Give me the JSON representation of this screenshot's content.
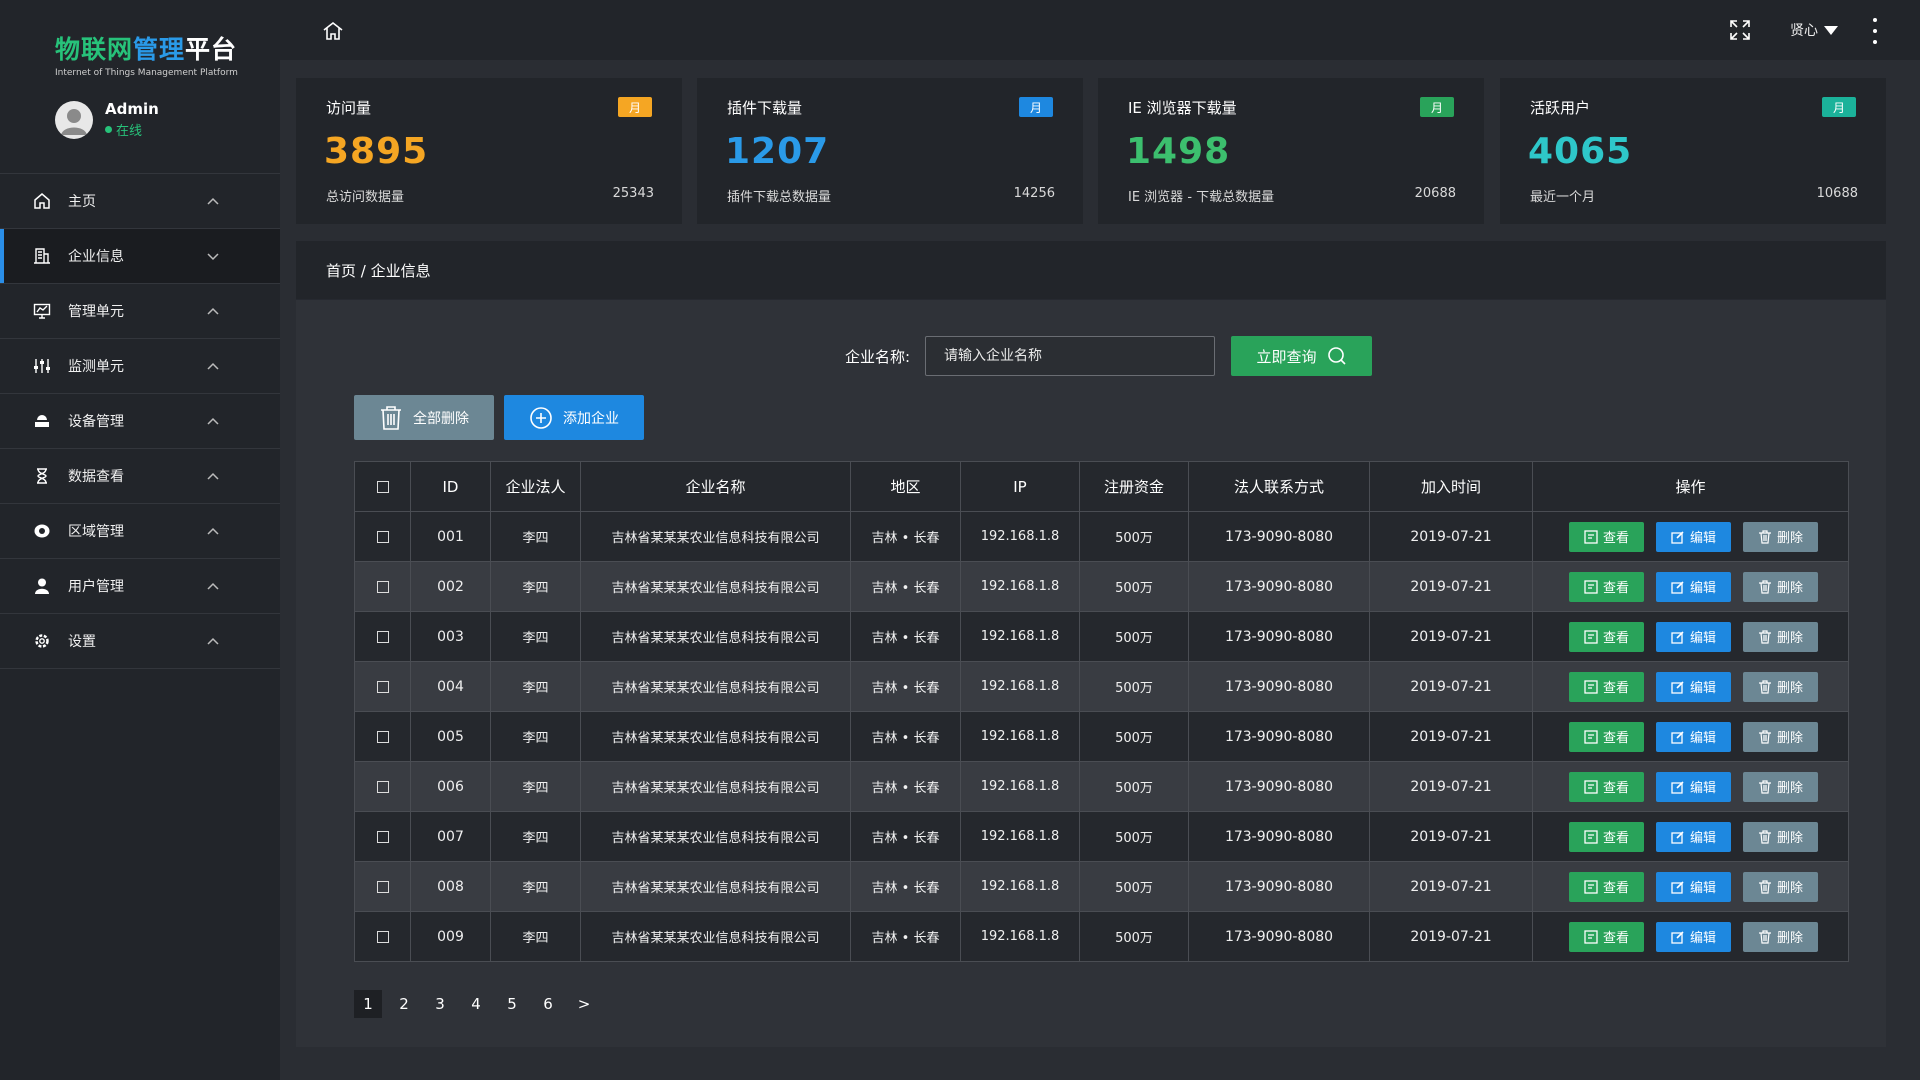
{
  "brand": {
    "title_part1": "物联网",
    "title_part2": "管理",
    "title_part3": "平台",
    "subtitle": "Internet of Things Management Platform"
  },
  "user": {
    "name": "Admin",
    "status": "在线"
  },
  "sidebar": {
    "items": [
      {
        "label": "主页",
        "icon": "home-icon"
      },
      {
        "label": "企业信息",
        "icon": "building-icon"
      },
      {
        "label": "管理单元",
        "icon": "monitor-chart-icon"
      },
      {
        "label": "监测单元",
        "icon": "sliders-icon"
      },
      {
        "label": "设备管理",
        "icon": "device-icon"
      },
      {
        "label": "数据查看",
        "icon": "hourglass-icon"
      },
      {
        "label": "区域管理",
        "icon": "location-icon"
      },
      {
        "label": "用户管理",
        "icon": "user-icon"
      },
      {
        "label": "设置",
        "icon": "gear-icon"
      }
    ]
  },
  "topbar": {
    "username": "贤心"
  },
  "stats": [
    {
      "title": "访问量",
      "badge": "月",
      "value": "3895",
      "foot": "总访问数据量",
      "total": "25343",
      "color": "#f5a623",
      "badge_color": "#f5a623"
    },
    {
      "title": "插件下载量",
      "badge": "月",
      "value": "1207",
      "foot": "插件下载总数据量",
      "total": "14256",
      "color": "#2a9ae8",
      "badge_color": "#1e88e0"
    },
    {
      "title": "IE 浏览器下载量",
      "badge": "月",
      "value": "1498",
      "foot": "IE 浏览器 - 下载总数据量",
      "total": "20688",
      "color": "#3cbf6e",
      "badge_color": "#29a35a"
    },
    {
      "title": "活跃用户",
      "badge": "月",
      "value": "4065",
      "foot": "最近一个月",
      "total": "10688",
      "color": "#2ec7c9",
      "badge_color": "#1bb29a"
    }
  ],
  "breadcrumb": "首页 / 企业信息",
  "search": {
    "label": "企业名称:",
    "placeholder": "请输入企业名称",
    "button": "立即查询"
  },
  "actions": {
    "delete_all": "全部删除",
    "add": "添加企业"
  },
  "table": {
    "headers": [
      "ID",
      "企业法人",
      "企业名称",
      "地区",
      "IP",
      "注册资金",
      "法人联系方式",
      "加入时间",
      "操作"
    ],
    "op_labels": {
      "view": "查看",
      "edit": "编辑",
      "delete": "删除"
    },
    "rows": [
      {
        "id": "001",
        "legal": "李四",
        "name": "吉林省某某某农业信息科技有限公司",
        "region": "吉林 • 长春",
        "ip": "192.168.1.8",
        "capital": "500万",
        "phone": "173-9090-8080",
        "date": "2019-07-21"
      },
      {
        "id": "002",
        "legal": "李四",
        "name": "吉林省某某某农业信息科技有限公司",
        "region": "吉林 • 长春",
        "ip": "192.168.1.8",
        "capital": "500万",
        "phone": "173-9090-8080",
        "date": "2019-07-21"
      },
      {
        "id": "003",
        "legal": "李四",
        "name": "吉林省某某某农业信息科技有限公司",
        "region": "吉林 • 长春",
        "ip": "192.168.1.8",
        "capital": "500万",
        "phone": "173-9090-8080",
        "date": "2019-07-21"
      },
      {
        "id": "004",
        "legal": "李四",
        "name": "吉林省某某某农业信息科技有限公司",
        "region": "吉林 • 长春",
        "ip": "192.168.1.8",
        "capital": "500万",
        "phone": "173-9090-8080",
        "date": "2019-07-21"
      },
      {
        "id": "005",
        "legal": "李四",
        "name": "吉林省某某某农业信息科技有限公司",
        "region": "吉林 • 长春",
        "ip": "192.168.1.8",
        "capital": "500万",
        "phone": "173-9090-8080",
        "date": "2019-07-21"
      },
      {
        "id": "006",
        "legal": "李四",
        "name": "吉林省某某某农业信息科技有限公司",
        "region": "吉林 • 长春",
        "ip": "192.168.1.8",
        "capital": "500万",
        "phone": "173-9090-8080",
        "date": "2019-07-21"
      },
      {
        "id": "007",
        "legal": "李四",
        "name": "吉林省某某某农业信息科技有限公司",
        "region": "吉林 • 长春",
        "ip": "192.168.1.8",
        "capital": "500万",
        "phone": "173-9090-8080",
        "date": "2019-07-21"
      },
      {
        "id": "008",
        "legal": "李四",
        "name": "吉林省某某某农业信息科技有限公司",
        "region": "吉林 • 长春",
        "ip": "192.168.1.8",
        "capital": "500万",
        "phone": "173-9090-8080",
        "date": "2019-07-21"
      },
      {
        "id": "009",
        "legal": "李四",
        "name": "吉林省某某某农业信息科技有限公司",
        "region": "吉林 • 长春",
        "ip": "192.168.1.8",
        "capital": "500万",
        "phone": "173-9090-8080",
        "date": "2019-07-21"
      }
    ]
  },
  "pagination": {
    "pages": [
      "1",
      "2",
      "3",
      "4",
      "5",
      "6"
    ],
    "next": ">",
    "current": "1"
  }
}
